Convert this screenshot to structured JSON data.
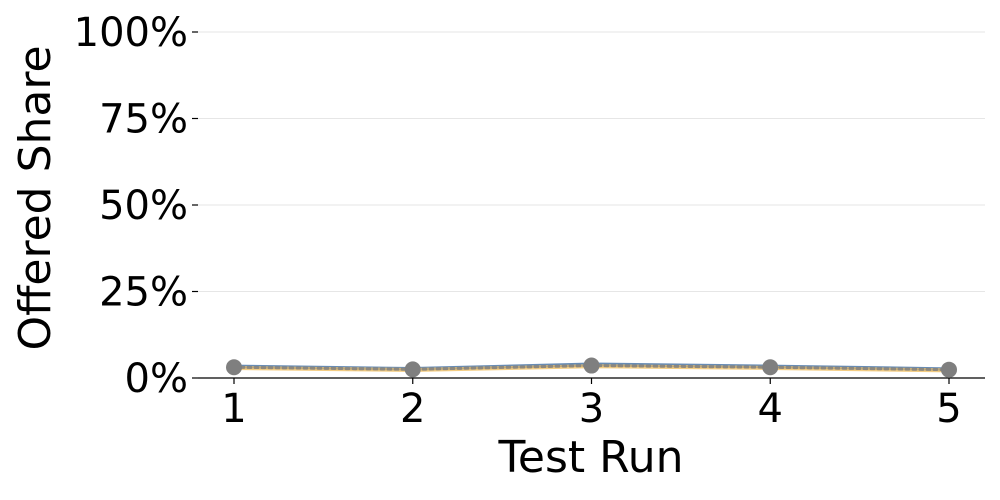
{
  "chart_data": {
    "type": "line",
    "title": "",
    "xlabel": "Test Run",
    "ylabel": "Offered Share",
    "x": [
      1,
      2,
      3,
      4,
      5
    ],
    "x_tick_labels": [
      "1",
      "2",
      "3",
      "4",
      "5"
    ],
    "ylim": [
      0,
      100
    ],
    "y_ticks": [
      0,
      25,
      50,
      75,
      100
    ],
    "y_tick_labels": [
      "0%",
      "25%",
      "50%",
      "75%",
      "100%"
    ],
    "grid": "horizontal",
    "legend": "none",
    "series": [
      {
        "values": [
          3.3,
          2.6,
          3.9,
          3.3,
          2.5
        ],
        "color": "#4c78a8",
        "style": "solid",
        "markers": false
      },
      {
        "values": [
          2.9,
          2.3,
          3.4,
          2.9,
          2.2
        ],
        "color": "#f2c46d",
        "style": "solid",
        "markers": false
      },
      {
        "values": [
          3.1,
          2.5,
          3.6,
          3.1,
          2.4
        ],
        "color": "#7f7f7f",
        "style": "dotted",
        "markers": true
      }
    ]
  }
}
